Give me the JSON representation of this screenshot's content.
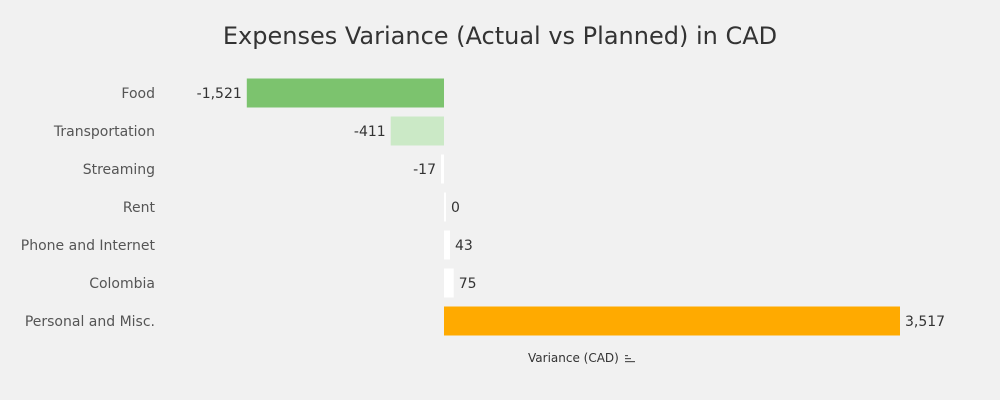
{
  "chart_data": {
    "type": "bar",
    "orientation": "horizontal",
    "title": "Expenses Variance (Actual vs Planned) in CAD",
    "xlabel": "Variance (CAD)",
    "ylabel": "",
    "categories": [
      "Food",
      "Transportation",
      "Streaming",
      "Rent",
      "Phone and Internet",
      "Colombia",
      "Personal and Misc."
    ],
    "values": [
      -1521,
      -411,
      -17,
      0,
      43,
      75,
      3517
    ],
    "value_labels": [
      "-1,521",
      "-411",
      "-17",
      "0",
      "43",
      "75",
      "3,517"
    ],
    "colors": [
      "#7cc36e",
      "#cbe9c6",
      "#ffffff",
      "#ffffff",
      "#ffffff",
      "#ffffff",
      "#ffaa00"
    ],
    "xlim": [
      -2195,
      3517
    ],
    "grid": false,
    "legend": "none"
  },
  "icons": {
    "sort": "sort-descending-icon"
  }
}
